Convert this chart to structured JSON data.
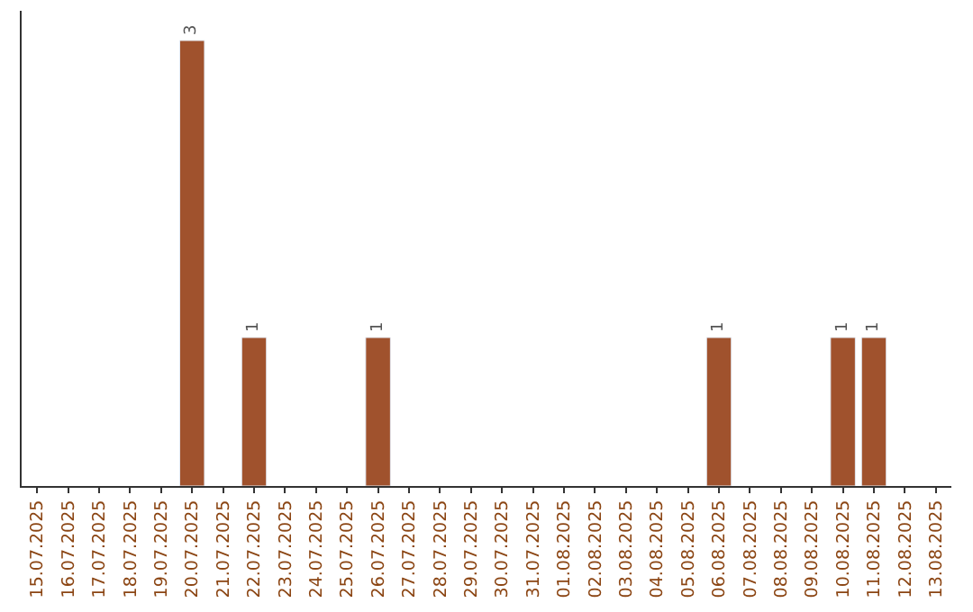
{
  "chart_data": {
    "type": "bar",
    "categories": [
      "15.07.2025",
      "16.07.2025",
      "17.07.2025",
      "18.07.2025",
      "19.07.2025",
      "20.07.2025",
      "21.07.2025",
      "22.07.2025",
      "23.07.2025",
      "24.07.2025",
      "25.07.2025",
      "26.07.2025",
      "27.07.2025",
      "28.07.2025",
      "29.07.2025",
      "30.07.2025",
      "31.07.2025",
      "01.08.2025",
      "02.08.2025",
      "03.08.2025",
      "04.08.2025",
      "05.08.2025",
      "06.08.2025",
      "07.08.2025",
      "08.08.2025",
      "09.08.2025",
      "10.08.2025",
      "11.08.2025",
      "12.08.2025",
      "13.08.2025"
    ],
    "values": [
      null,
      null,
      null,
      null,
      null,
      3,
      null,
      1,
      null,
      null,
      null,
      1,
      null,
      null,
      null,
      null,
      null,
      null,
      null,
      null,
      null,
      null,
      1,
      null,
      null,
      null,
      1,
      1,
      null,
      null
    ],
    "value_labels": [
      null,
      null,
      null,
      null,
      null,
      "3",
      null,
      "1",
      null,
      null,
      null,
      "1",
      null,
      null,
      null,
      null,
      null,
      null,
      null,
      null,
      null,
      null,
      "1",
      null,
      null,
      null,
      "1",
      "1",
      null,
      null
    ],
    "color": "#a0522d",
    "ylim": [
      0,
      3.2
    ],
    "tick_labels": "x"
  }
}
